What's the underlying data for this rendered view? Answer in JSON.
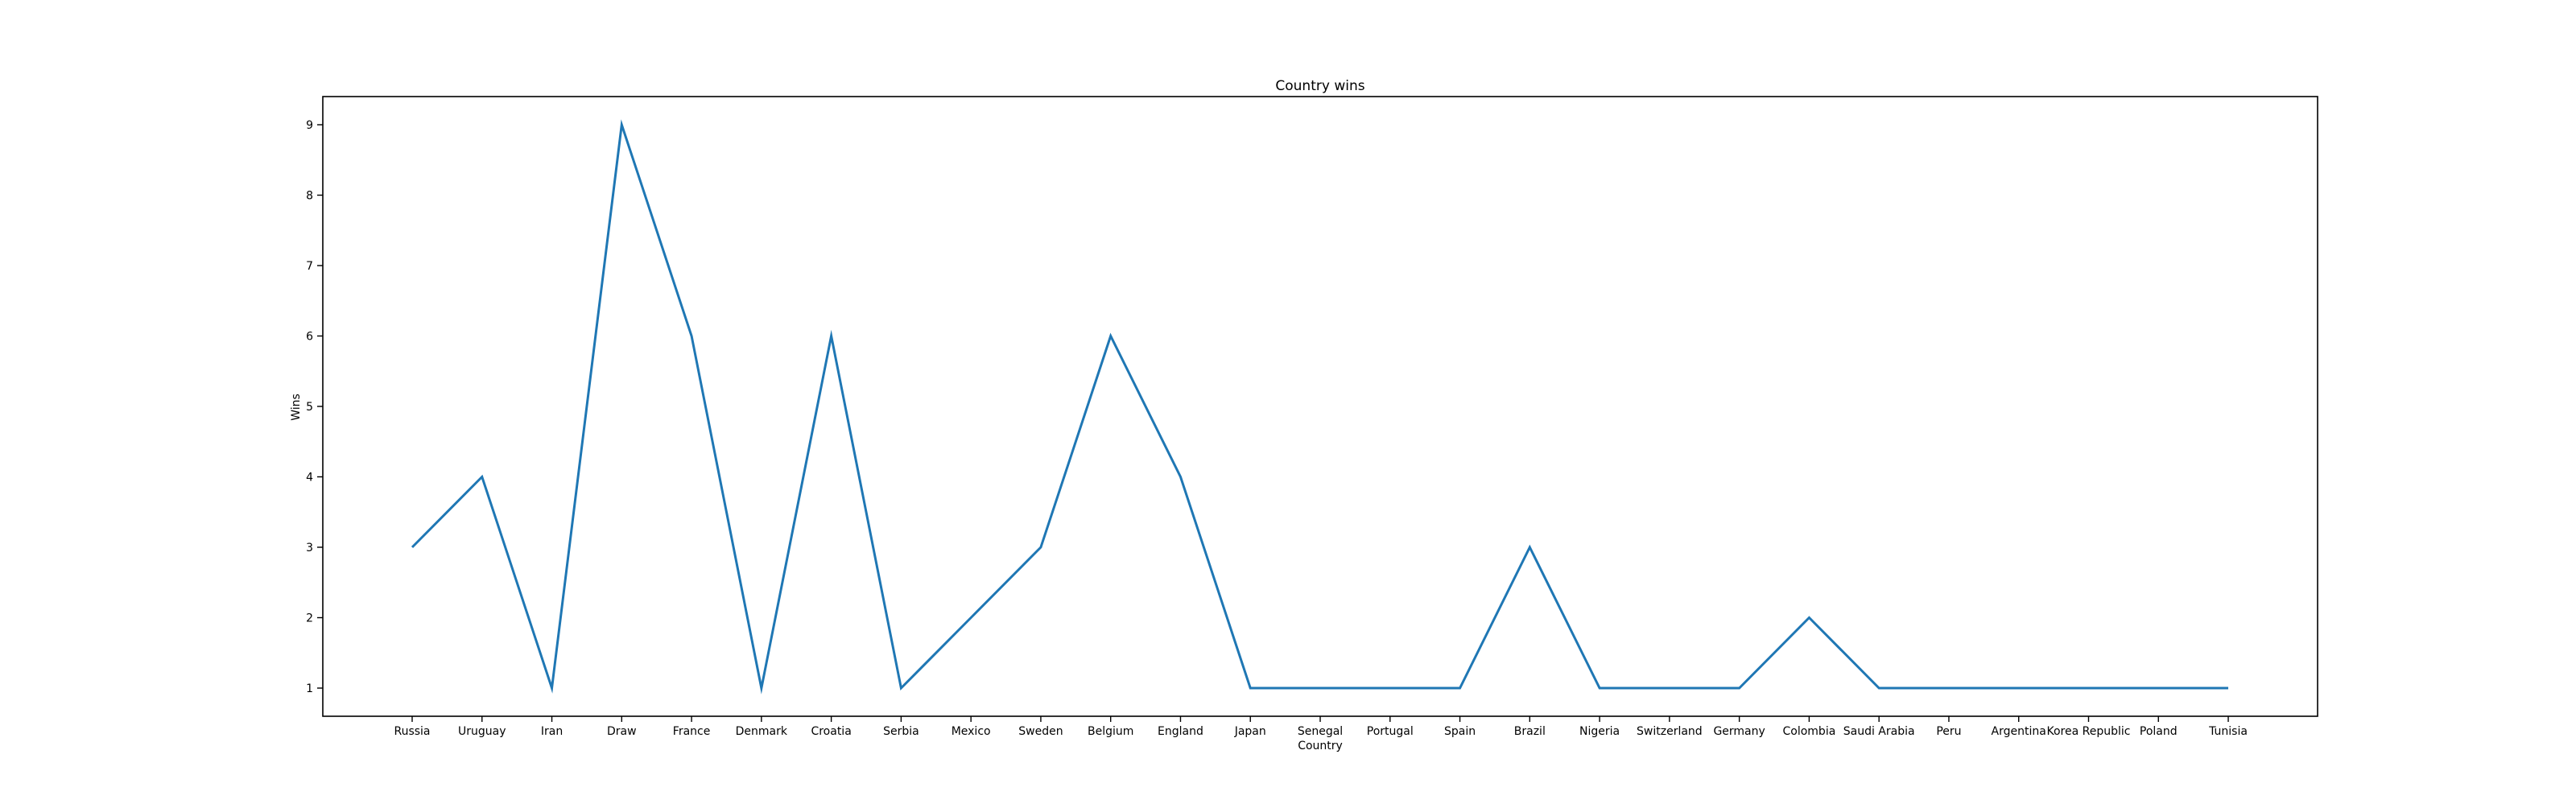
{
  "chart_data": {
    "type": "line",
    "title": "Country wins",
    "xlabel": "Country",
    "ylabel": "Wins",
    "categories": [
      "Russia",
      "Uruguay",
      "Iran",
      "Draw",
      "France",
      "Denmark",
      "Croatia",
      "Serbia",
      "Mexico",
      "Sweden",
      "Belgium",
      "England",
      "Japan",
      "Senegal",
      "Portugal",
      "Spain",
      "Brazil",
      "Nigeria",
      "Switzerland",
      "Germany",
      "Colombia",
      "Saudi Arabia",
      "Peru",
      "Argentina",
      "Korea Republic",
      "Poland",
      "Tunisia"
    ],
    "series": [
      {
        "values": [
          3,
          4,
          1,
          9,
          6,
          1,
          6,
          1,
          2,
          3,
          6,
          4,
          1,
          1,
          1,
          1,
          3,
          1,
          1,
          1,
          2,
          1,
          1,
          1,
          1,
          1,
          1
        ]
      }
    ],
    "ylim": [
      0.6,
      9.4
    ],
    "yticks": [
      1,
      2,
      3,
      4,
      5,
      6,
      7,
      8,
      9
    ],
    "grid": false,
    "line_color": "#1f77b4"
  }
}
